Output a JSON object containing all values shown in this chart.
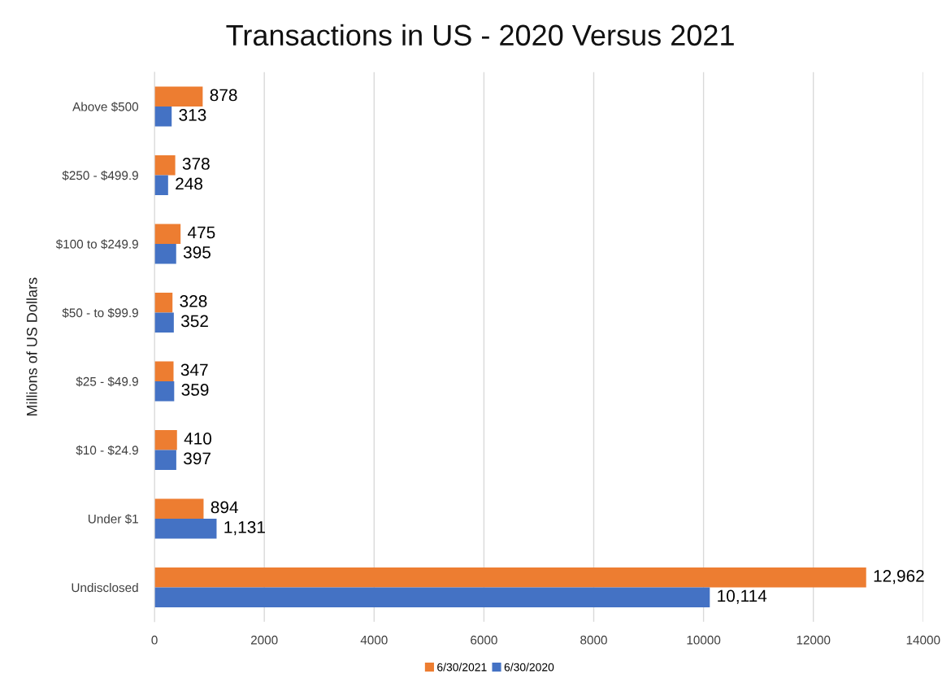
{
  "chart_data": {
    "type": "bar",
    "orientation": "horizontal",
    "title": "Transactions in US - 2020 Versus 2021",
    "ylabel": "Millions of US Dollars",
    "categories": [
      "Above $500",
      "$250 - $499.9",
      "$100 to $249.9",
      "$50 - to $99.9",
      "$25 - $49.9",
      "$10 - $24.9",
      "Under $1",
      "Undisclosed"
    ],
    "series": [
      {
        "name": "6/30/2021",
        "color": "#ed7d31",
        "values": [
          878,
          378,
          475,
          328,
          347,
          410,
          894,
          12962
        ],
        "value_labels": [
          "878",
          "378",
          "475",
          "328",
          "347",
          "410",
          "894",
          "12,962"
        ]
      },
      {
        "name": "6/30/2020",
        "color": "#4472c4",
        "values": [
          313,
          248,
          395,
          352,
          359,
          397,
          1131,
          10114
        ],
        "value_labels": [
          "313",
          "248",
          "395",
          "352",
          "359",
          "397",
          "1,131",
          "10,114"
        ]
      }
    ],
    "xlim": [
      0,
      14000
    ],
    "xticks": [
      0,
      2000,
      4000,
      6000,
      8000,
      10000,
      12000,
      14000
    ],
    "grid": "x",
    "legend": "bottom"
  }
}
